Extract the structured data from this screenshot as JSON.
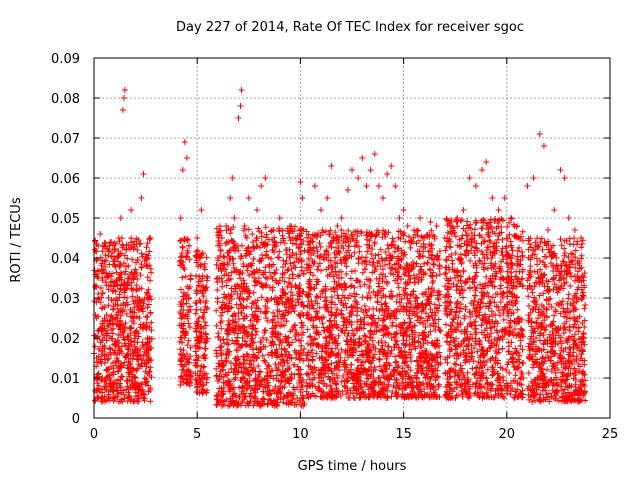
{
  "chart_data": {
    "type": "scatter",
    "title": "Day 227 of 2014, Rate Of TEC Index for receiver sgoc",
    "xlabel": "GPS time / hours",
    "ylabel": "ROTI / TECUs",
    "xlim": [
      0,
      25
    ],
    "ylim": [
      0,
      0.09
    ],
    "xticks": [
      "0",
      "5",
      "10",
      "15",
      "20",
      "25"
    ],
    "yticks": [
      "0",
      "0.01",
      "0.02",
      "0.03",
      "0.04",
      "0.05",
      "0.06",
      "0.07",
      "0.08",
      "0.09"
    ],
    "xtick_values": [
      0,
      5,
      10,
      15,
      20,
      25
    ],
    "ytick_values": [
      0,
      0.01,
      0.02,
      0.03,
      0.04,
      0.05,
      0.06,
      0.07,
      0.08,
      0.09
    ],
    "grid": true,
    "marker": "+",
    "marker_color": "#ff0000",
    "series": [
      {
        "points": [
          [
            0.3,
            0.046
          ],
          [
            0.4,
            0.035
          ],
          [
            0.5,
            0.02
          ],
          [
            0.6,
            0.012
          ],
          [
            0.7,
            0.03
          ],
          [
            0.8,
            0.008
          ],
          [
            0.9,
            0.025
          ],
          [
            1.0,
            0.04
          ],
          [
            1.1,
            0.015
          ],
          [
            1.2,
            0.045
          ],
          [
            1.3,
            0.05
          ],
          [
            1.4,
            0.077
          ],
          [
            1.45,
            0.08
          ],
          [
            1.5,
            0.082
          ],
          [
            1.6,
            0.03
          ],
          [
            1.7,
            0.018
          ],
          [
            1.8,
            0.052
          ],
          [
            1.9,
            0.035
          ],
          [
            2.0,
            0.01
          ],
          [
            2.1,
            0.042
          ],
          [
            2.2,
            0.025
          ],
          [
            2.3,
            0.055
          ],
          [
            2.4,
            0.061
          ],
          [
            2.5,
            0.04
          ],
          [
            2.6,
            0.02
          ],
          [
            2.7,
            0.045
          ],
          [
            4.2,
            0.05
          ],
          [
            4.3,
            0.062
          ],
          [
            4.4,
            0.069
          ],
          [
            4.5,
            0.065
          ],
          [
            4.6,
            0.03
          ],
          [
            4.7,
            0.01
          ],
          [
            5.0,
            0.045
          ],
          [
            5.2,
            0.052
          ],
          [
            5.3,
            0.025
          ],
          [
            5.4,
            0.015
          ],
          [
            5.5,
            0.035
          ],
          [
            6.0,
            0.04
          ],
          [
            6.2,
            0.045
          ],
          [
            6.4,
            0.048
          ],
          [
            6.5,
            0.003
          ],
          [
            6.6,
            0.055
          ],
          [
            6.7,
            0.06
          ],
          [
            6.8,
            0.05
          ],
          [
            7.0,
            0.075
          ],
          [
            7.1,
            0.078
          ],
          [
            7.15,
            0.082
          ],
          [
            7.3,
            0.048
          ],
          [
            7.5,
            0.055
          ],
          [
            7.7,
            0.044
          ],
          [
            7.9,
            0.052
          ],
          [
            8.1,
            0.058
          ],
          [
            8.3,
            0.06
          ],
          [
            8.5,
            0.038
          ],
          [
            8.7,
            0.047
          ],
          [
            9.0,
            0.05
          ],
          [
            9.3,
            0.042
          ],
          [
            9.5,
            0.048
          ],
          [
            9.8,
            0.04
          ],
          [
            10.0,
            0.059
          ],
          [
            10.1,
            0.055
          ],
          [
            10.5,
            0.045
          ],
          [
            10.7,
            0.058
          ],
          [
            11.0,
            0.052
          ],
          [
            11.3,
            0.055
          ],
          [
            11.5,
            0.063
          ],
          [
            11.8,
            0.048
          ],
          [
            12.0,
            0.05
          ],
          [
            12.3,
            0.057
          ],
          [
            12.5,
            0.062
          ],
          [
            12.8,
            0.06
          ],
          [
            13.0,
            0.065
          ],
          [
            13.2,
            0.058
          ],
          [
            13.4,
            0.062
          ],
          [
            13.6,
            0.066
          ],
          [
            13.8,
            0.058
          ],
          [
            14.0,
            0.055
          ],
          [
            14.2,
            0.061
          ],
          [
            14.4,
            0.063
          ],
          [
            14.6,
            0.058
          ],
          [
            14.8,
            0.05
          ],
          [
            15.0,
            0.052
          ],
          [
            15.2,
            0.048
          ],
          [
            15.5,
            0.047
          ],
          [
            15.8,
            0.05
          ],
          [
            16.0,
            0.045
          ],
          [
            16.3,
            0.049
          ],
          [
            16.6,
            0.048
          ],
          [
            17.0,
            0.045
          ],
          [
            17.3,
            0.048
          ],
          [
            17.6,
            0.05
          ],
          [
            17.9,
            0.052
          ],
          [
            18.2,
            0.06
          ],
          [
            18.5,
            0.058
          ],
          [
            18.8,
            0.062
          ],
          [
            19.0,
            0.064
          ],
          [
            19.3,
            0.055
          ],
          [
            19.6,
            0.052
          ],
          [
            19.9,
            0.055
          ],
          [
            20.2,
            0.05
          ],
          [
            20.5,
            0.048
          ],
          [
            21.0,
            0.058
          ],
          [
            21.3,
            0.06
          ],
          [
            21.6,
            0.071
          ],
          [
            21.8,
            0.068
          ],
          [
            22.0,
            0.047
          ],
          [
            22.3,
            0.052
          ],
          [
            22.6,
            0.062
          ],
          [
            22.8,
            0.06
          ],
          [
            23.0,
            0.05
          ],
          [
            23.3,
            0.047
          ],
          [
            23.6,
            0.045
          ]
        ]
      }
    ],
    "dense_bands": [
      {
        "x_from": 0.0,
        "x_to": 2.8,
        "y_from": 0.004,
        "y_to": 0.045
      },
      {
        "x_from": 4.15,
        "x_to": 4.7,
        "y_from": 0.008,
        "y_to": 0.045
      },
      {
        "x_from": 4.9,
        "x_to": 5.5,
        "y_from": 0.006,
        "y_to": 0.042
      },
      {
        "x_from": 5.9,
        "x_to": 10.2,
        "y_from": 0.003,
        "y_to": 0.048
      },
      {
        "x_from": 10.3,
        "x_to": 16.8,
        "y_from": 0.005,
        "y_to": 0.047
      },
      {
        "x_from": 17.0,
        "x_to": 20.8,
        "y_from": 0.005,
        "y_to": 0.05
      },
      {
        "x_from": 21.0,
        "x_to": 23.8,
        "y_from": 0.004,
        "y_to": 0.045
      }
    ]
  }
}
